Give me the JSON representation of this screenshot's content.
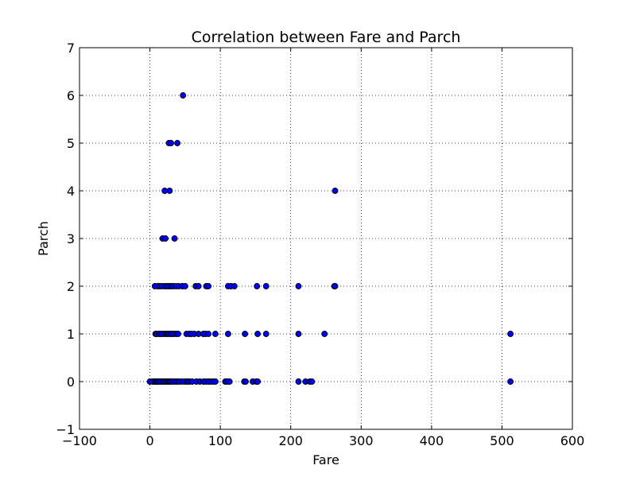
{
  "chart_data": {
    "type": "scatter",
    "title": "Correlation between Fare and Parch",
    "xlabel": "Fare",
    "ylabel": "Parch",
    "xlim": [
      -100,
      600
    ],
    "ylim": [
      -1,
      7
    ],
    "xticks": [
      -100,
      0,
      100,
      200,
      300,
      400,
      500,
      600
    ],
    "yticks": [
      -1,
      0,
      1,
      2,
      3,
      4,
      5,
      6,
      7
    ],
    "xtick_labels": [
      "−100",
      "0",
      "100",
      "200",
      "300",
      "400",
      "500",
      "600"
    ],
    "ytick_labels": [
      "−1",
      "0",
      "1",
      "2",
      "3",
      "4",
      "5",
      "6",
      "7"
    ],
    "grid": true,
    "points": [
      {
        "x": 0,
        "y": 0
      },
      {
        "x": 4,
        "y": 0
      },
      {
        "x": 7,
        "y": 0
      },
      {
        "x": 8,
        "y": 0
      },
      {
        "x": 10,
        "y": 0
      },
      {
        "x": 12,
        "y": 0
      },
      {
        "x": 14,
        "y": 0
      },
      {
        "x": 16,
        "y": 0
      },
      {
        "x": 19,
        "y": 0
      },
      {
        "x": 21,
        "y": 0
      },
      {
        "x": 24,
        "y": 0
      },
      {
        "x": 26,
        "y": 0
      },
      {
        "x": 28,
        "y": 0
      },
      {
        "x": 30,
        "y": 0
      },
      {
        "x": 33,
        "y": 0
      },
      {
        "x": 36,
        "y": 0
      },
      {
        "x": 39,
        "y": 0
      },
      {
        "x": 42,
        "y": 0
      },
      {
        "x": 46,
        "y": 0
      },
      {
        "x": 50,
        "y": 0
      },
      {
        "x": 53,
        "y": 0
      },
      {
        "x": 56,
        "y": 0
      },
      {
        "x": 60,
        "y": 0
      },
      {
        "x": 66,
        "y": 0
      },
      {
        "x": 71,
        "y": 0
      },
      {
        "x": 76,
        "y": 0
      },
      {
        "x": 79,
        "y": 0
      },
      {
        "x": 83,
        "y": 0
      },
      {
        "x": 86,
        "y": 0
      },
      {
        "x": 90,
        "y": 0
      },
      {
        "x": 93,
        "y": 0
      },
      {
        "x": 107,
        "y": 0
      },
      {
        "x": 110,
        "y": 0
      },
      {
        "x": 113,
        "y": 0
      },
      {
        "x": 134,
        "y": 0
      },
      {
        "x": 136,
        "y": 0
      },
      {
        "x": 146,
        "y": 0
      },
      {
        "x": 151,
        "y": 0
      },
      {
        "x": 153,
        "y": 0
      },
      {
        "x": 211,
        "y": 0
      },
      {
        "x": 221,
        "y": 0
      },
      {
        "x": 227,
        "y": 0
      },
      {
        "x": 230,
        "y": 0
      },
      {
        "x": 512,
        "y": 0
      },
      {
        "x": 8,
        "y": 1
      },
      {
        "x": 10,
        "y": 1
      },
      {
        "x": 13,
        "y": 1
      },
      {
        "x": 15,
        "y": 1
      },
      {
        "x": 18,
        "y": 1
      },
      {
        "x": 21,
        "y": 1
      },
      {
        "x": 24,
        "y": 1
      },
      {
        "x": 26,
        "y": 1
      },
      {
        "x": 29,
        "y": 1
      },
      {
        "x": 31,
        "y": 1
      },
      {
        "x": 34,
        "y": 1
      },
      {
        "x": 37,
        "y": 1
      },
      {
        "x": 40,
        "y": 1
      },
      {
        "x": 52,
        "y": 1
      },
      {
        "x": 56,
        "y": 1
      },
      {
        "x": 59,
        "y": 1
      },
      {
        "x": 63,
        "y": 1
      },
      {
        "x": 69,
        "y": 1
      },
      {
        "x": 76,
        "y": 1
      },
      {
        "x": 79,
        "y": 1
      },
      {
        "x": 83,
        "y": 1
      },
      {
        "x": 93,
        "y": 1
      },
      {
        "x": 111,
        "y": 1
      },
      {
        "x": 135,
        "y": 1
      },
      {
        "x": 153,
        "y": 1
      },
      {
        "x": 165,
        "y": 1
      },
      {
        "x": 211,
        "y": 1
      },
      {
        "x": 248,
        "y": 1
      },
      {
        "x": 512,
        "y": 1
      },
      {
        "x": 7,
        "y": 2
      },
      {
        "x": 11,
        "y": 2
      },
      {
        "x": 14,
        "y": 2
      },
      {
        "x": 17,
        "y": 2
      },
      {
        "x": 21,
        "y": 2
      },
      {
        "x": 24,
        "y": 2
      },
      {
        "x": 27,
        "y": 2
      },
      {
        "x": 30,
        "y": 2
      },
      {
        "x": 33,
        "y": 2
      },
      {
        "x": 37,
        "y": 2
      },
      {
        "x": 41,
        "y": 2
      },
      {
        "x": 46,
        "y": 2
      },
      {
        "x": 50,
        "y": 2
      },
      {
        "x": 65,
        "y": 2
      },
      {
        "x": 69,
        "y": 2
      },
      {
        "x": 80,
        "y": 2
      },
      {
        "x": 83,
        "y": 2
      },
      {
        "x": 111,
        "y": 2
      },
      {
        "x": 115,
        "y": 2
      },
      {
        "x": 120,
        "y": 2
      },
      {
        "x": 152,
        "y": 2
      },
      {
        "x": 165,
        "y": 2
      },
      {
        "x": 211,
        "y": 2
      },
      {
        "x": 262,
        "y": 2
      },
      {
        "x": 263,
        "y": 2
      },
      {
        "x": 18,
        "y": 3
      },
      {
        "x": 22,
        "y": 3
      },
      {
        "x": 35,
        "y": 3
      },
      {
        "x": 21,
        "y": 4
      },
      {
        "x": 28,
        "y": 4
      },
      {
        "x": 263,
        "y": 4
      },
      {
        "x": 27,
        "y": 5
      },
      {
        "x": 30,
        "y": 5
      },
      {
        "x": 39,
        "y": 5
      },
      {
        "x": 47,
        "y": 6
      }
    ]
  }
}
